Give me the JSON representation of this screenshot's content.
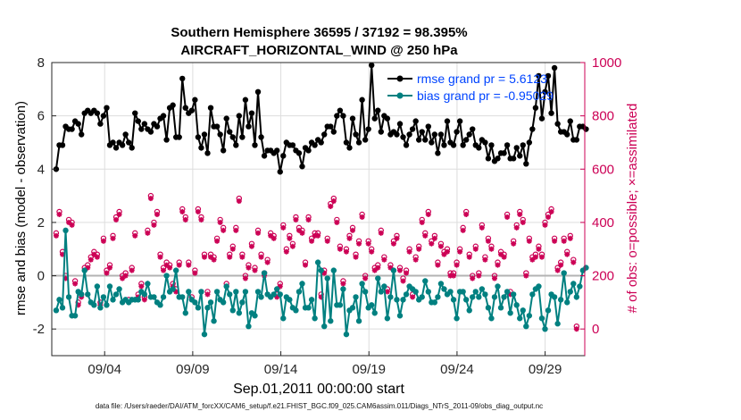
{
  "chart_data": {
    "type": "line",
    "title": "Southern Hemisphere 36595 / 37192 = 98.395%",
    "subtitle": "AIRCRAFT_HORIZONTAL_WIND @ 250 hPa",
    "xlabel": "Sep.01,2011 00:00:00 start",
    "ylabel_left": "rmse and bias (model - observation)",
    "ylabel_right": "# of obs: o=possible; ×=assimilated",
    "footer": "data file: /Users/raeder/DAI/ATM_forcXX/CAM6_setup/f.e21.FHIST_BGC.f09_025.CAM6assim.011/Diags_NTrS_2011-09/obs_diag_output.nc",
    "x_tick_labels": [
      "09/04",
      "09/09",
      "09/14",
      "09/19",
      "09/24",
      "09/29"
    ],
    "x_tick_days": [
      3,
      8,
      13,
      18,
      23,
      28
    ],
    "xlim_days": [
      0,
      30.25
    ],
    "ylim_left": [
      -3,
      8
    ],
    "yticks_left": [
      -2,
      0,
      2,
      4,
      6,
      8
    ],
    "ylim_right": [
      -100,
      1000
    ],
    "yticks_right": [
      0,
      200,
      400,
      600,
      800,
      1000
    ],
    "grid": true,
    "zero_line": true,
    "legend_position": "top-right",
    "colors": {
      "rmse": "#000000",
      "bias": "#008080",
      "obs": "#cc0055",
      "zero_line": "#b3b3b3",
      "grid": "#dddddd",
      "legend_text": "#0044ff"
    },
    "series": [
      {
        "name": "rmse grand pr = 5.6123",
        "axis": "left",
        "marker": "filled-star",
        "values": [
          4.0,
          4.9,
          4.9,
          5.6,
          5.5,
          5.5,
          5.8,
          5.7,
          5.3,
          6.1,
          6.2,
          6.1,
          6.2,
          6.1,
          5.7,
          6.0,
          6.3,
          4.9,
          5.0,
          4.8,
          5.0,
          4.9,
          5.3,
          5.0,
          4.8,
          6.1,
          5.8,
          5.5,
          5.7,
          5.5,
          5.4,
          5.7,
          5.6,
          5.9,
          6.0,
          5.1,
          6.3,
          6.4,
          5.2,
          5.2,
          7.4,
          6.3,
          6.1,
          6.2,
          6.6,
          5.2,
          4.8,
          5.3,
          4.6,
          6.3,
          5.6,
          5.6,
          5.3,
          4.7,
          5.9,
          5.4,
          5.2,
          4.9,
          6.0,
          5.2,
          6.6,
          5.6,
          6.1,
          4.9,
          6.9,
          5.2,
          4.5,
          4.7,
          4.7,
          4.6,
          4.7,
          3.9,
          4.5,
          5.0,
          4.9,
          4.9,
          4.7,
          4.6,
          4.1,
          4.8,
          4.7,
          5.0,
          4.9,
          5.1,
          5.0,
          5.3,
          5.6,
          5.6,
          5.4,
          6.0,
          6.2,
          6.0,
          5.0,
          4.8,
          5.9,
          5.3,
          5.0,
          6.6,
          5.1,
          5.5,
          7.9,
          5.9,
          6.2,
          5.4,
          6.0,
          5.9,
          5.3,
          5.4,
          5.3,
          5.7,
          5.2,
          4.9,
          5.3,
          5.5,
          5.8,
          5.1,
          5.4,
          5.1,
          5.6,
          5.0,
          5.3,
          4.6,
          5.3,
          4.9,
          5.8,
          5.0,
          4.9,
          5.4,
          5.8,
          4.9,
          5.1,
          5.3,
          5.5,
          4.9,
          4.8,
          5.1,
          5.0,
          4.4,
          4.9,
          4.3,
          4.4,
          4.6,
          4.6,
          4.9,
          4.4,
          4.4,
          4.8,
          4.5,
          4.9,
          4.2,
          5.0,
          5.5,
          6.3,
          7.5,
          5.9,
          6.9,
          7.5,
          6.1,
          7.8,
          5.7,
          5.4,
          5.4,
          5.3,
          5.8,
          5.1,
          5.1,
          5.6,
          5.6,
          5.5
        ]
      },
      {
        "name": "bias grand pr = -0.95029",
        "axis": "left",
        "marker": "filled-circle",
        "values": [
          -1.3,
          -0.9,
          -1.2,
          1.7,
          -0.8,
          -1.5,
          -1.5,
          -0.6,
          -0.7,
          0.2,
          -0.7,
          -1.0,
          -1.1,
          -0.4,
          -1.2,
          -0.8,
          -1.1,
          -0.4,
          -0.9,
          -0.7,
          -0.5,
          -1.0,
          -0.9,
          -1.0,
          -0.9,
          -0.9,
          -0.9,
          -0.6,
          -0.7,
          -0.3,
          -0.8,
          -0.8,
          -1.0,
          -1.1,
          -0.8,
          0.0,
          -0.6,
          -0.5,
          0.2,
          -0.8,
          -0.8,
          -1.4,
          -0.6,
          -0.9,
          -1.0,
          -1.2,
          -0.6,
          -2.2,
          -1.2,
          -1.0,
          -1.7,
          -0.6,
          -0.9,
          -1.0,
          -0.4,
          -0.7,
          -1.3,
          -0.6,
          -1.4,
          -1.0,
          -0.6,
          -1.9,
          -1.4,
          -1.5,
          -0.6,
          -0.8,
          0.1,
          -0.7,
          -0.8,
          -0.7,
          -0.5,
          -0.7,
          -1.6,
          -0.8,
          -0.9,
          -1.2,
          -1.3,
          -0.6,
          -0.3,
          -1.2,
          -1.2,
          -0.9,
          -1.6,
          0.5,
          0.2,
          -1.9,
          -0.1,
          -1.7,
          0.2,
          -1.1,
          -1.1,
          -0.5,
          -2.2,
          -1.3,
          -1.2,
          -0.8,
          -1.7,
          -0.3,
          -0.6,
          -1.2,
          -1.1,
          -1.4,
          -0.1,
          -0.6,
          -0.4,
          -1.6,
          -0.8,
          0.2,
          -0.9,
          -1.5,
          -0.9,
          -0.7,
          -0.4,
          -0.5,
          -0.6,
          -0.9,
          -0.8,
          -0.2,
          -0.6,
          -1.0,
          -1.0,
          -0.8,
          -0.3,
          -0.5,
          -0.7,
          -0.6,
          -0.9,
          -1.6,
          -0.6,
          -0.6,
          -0.9,
          -1.3,
          -0.8,
          -0.6,
          -0.8,
          -0.5,
          -0.7,
          -1.2,
          -1.6,
          -0.8,
          -0.4,
          -1.2,
          -0.8,
          -0.6,
          -1.4,
          -0.7,
          -1.1,
          -1.6,
          -1.3,
          -1.9,
          -1.5,
          -0.7,
          -0.5,
          -0.4,
          -1.6,
          -2.0,
          -1.3,
          -0.7,
          -0.8,
          -1.8,
          -0.9,
          0.1,
          -1.0,
          -0.6,
          -0.3,
          -0.8,
          -0.4,
          0.2,
          0.3
        ]
      },
      {
        "name": "obs assimilated",
        "axis": "right",
        "marker": "asterisk",
        "values": [
          350,
          430,
          280,
          190,
          400,
          390,
          170,
          90,
          120,
          220,
          230,
          260,
          280,
          270,
          90,
          330,
          210,
          230,
          340,
          410,
          430,
          190,
          200,
          100,
          220,
          350,
          120,
          160,
          110,
          360,
          490,
          390,
          430,
          270,
          220,
          240,
          230,
          160,
          140,
          240,
          440,
          410,
          240,
          110,
          210,
          440,
          410,
          270,
          130,
          270,
          260,
          330,
          400,
          370,
          160,
          270,
          300,
          370,
          480,
          270,
          190,
          230,
          310,
          220,
          360,
          270,
          200,
          250,
          350,
          340,
          120,
          160,
          380,
          290,
          340,
          310,
          410,
          370,
          360,
          240,
          410,
          330,
          350,
          350,
          120,
          210,
          330,
          460,
          480,
          400,
          300,
          170,
          290,
          340,
          370,
          270,
          320,
          420,
          190,
          320,
          290,
          220,
          230,
          360,
          260,
          140,
          230,
          320,
          340,
          220,
          180,
          210,
          290,
          120,
          260,
          300,
          400,
          350,
          430,
          320,
          340,
          240,
          310,
          280,
          290,
          200,
          200,
          240,
          290,
          370,
          430,
          270,
          190,
          300,
          200,
          380,
          260,
          330,
          300,
          190,
          240,
          280,
          270,
          420,
          130,
          320,
          380,
          430,
          400,
          200,
          330,
          260,
          270,
          300,
          270,
          390,
          420,
          440,
          330,
          220,
          240,
          330,
          280,
          340,
          250,
          0
        ]
      },
      {
        "name": "obs possible",
        "axis": "right",
        "marker": "open-circle",
        "values": [
          360,
          440,
          290,
          200,
          410,
          400,
          180,
          100,
          130,
          230,
          240,
          270,
          290,
          280,
          100,
          340,
          220,
          240,
          350,
          420,
          440,
          200,
          210,
          110,
          230,
          360,
          130,
          170,
          120,
          370,
          500,
          400,
          440,
          280,
          230,
          250,
          240,
          170,
          150,
          250,
          450,
          420,
          250,
          120,
          220,
          450,
          420,
          280,
          140,
          280,
          270,
          340,
          410,
          380,
          170,
          280,
          310,
          380,
          490,
          280,
          200,
          240,
          320,
          230,
          370,
          280,
          210,
          260,
          360,
          350,
          130,
          170,
          390,
          300,
          350,
          320,
          420,
          380,
          370,
          250,
          420,
          340,
          360,
          360,
          130,
          220,
          340,
          470,
          490,
          410,
          310,
          180,
          300,
          350,
          380,
          280,
          330,
          430,
          200,
          330,
          300,
          230,
          240,
          370,
          270,
          150,
          240,
          330,
          350,
          230,
          190,
          220,
          300,
          130,
          270,
          310,
          410,
          360,
          440,
          330,
          350,
          250,
          320,
          290,
          300,
          210,
          210,
          250,
          300,
          380,
          440,
          280,
          200,
          310,
          210,
          390,
          270,
          340,
          310,
          200,
          250,
          290,
          280,
          430,
          140,
          330,
          390,
          440,
          410,
          210,
          340,
          270,
          280,
          310,
          280,
          400,
          430,
          450,
          340,
          230,
          250,
          340,
          290,
          350,
          260,
          10
        ]
      }
    ]
  }
}
